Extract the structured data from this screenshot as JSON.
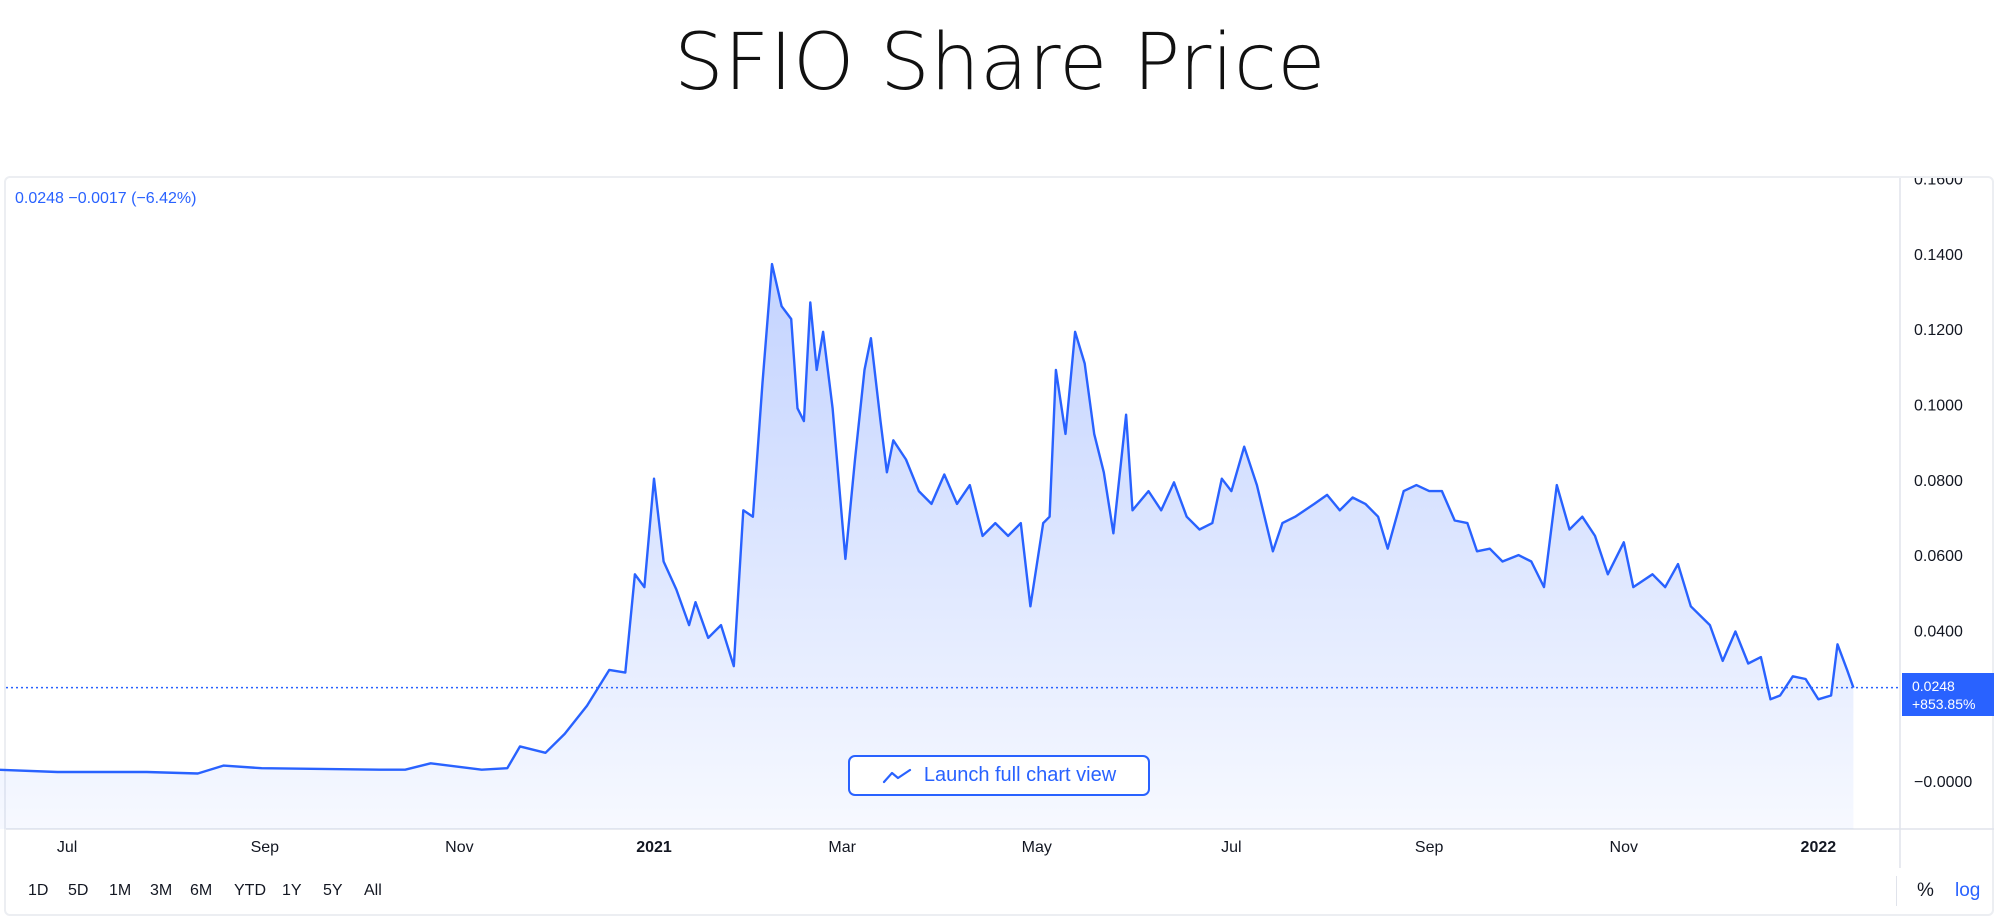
{
  "page": {
    "title": "SFIO Share Price"
  },
  "legend": {
    "text": "0.0248  −0.0017 (−6.42%)"
  },
  "price_tag": {
    "price": "0.0248",
    "change": "+853.85%"
  },
  "launch_button": {
    "label": "Launch full chart view",
    "icon": "chart-line-icon"
  },
  "range_buttons": [
    "1D",
    "5D",
    "1M",
    "3M",
    "6M",
    "YTD",
    "1Y",
    "5Y",
    "All"
  ],
  "axis_buttons": {
    "percent": "%",
    "log": "log"
  },
  "colors": {
    "line": "#2962ff",
    "accent": "#2962ff",
    "text": "#131722"
  },
  "chart_data": {
    "type": "area",
    "title": "SFIO Share Price",
    "xlabel": "",
    "ylabel": "",
    "ylim": [
      -0.0128,
      0.16
    ],
    "xlim": [
      "2020-06-09",
      "2022-01-25"
    ],
    "grid": false,
    "current_price_line": 0.0248,
    "y_ticks": [
      "0.1600",
      "0.1400",
      "0.1200",
      "0.1000",
      "0.0800",
      "0.0600",
      "0.0400",
      "−0.0000"
    ],
    "y_tick_values": [
      0.16,
      0.14,
      0.12,
      0.1,
      0.08,
      0.06,
      0.04,
      0
    ],
    "x_ticks": [
      {
        "label": "Jul",
        "date": "2020-07-01"
      },
      {
        "label": "Sep",
        "date": "2020-09-01"
      },
      {
        "label": "Nov",
        "date": "2020-11-01"
      },
      {
        "label": "2021",
        "date": "2021-01-01"
      },
      {
        "label": "Mar",
        "date": "2021-03-01"
      },
      {
        "label": "May",
        "date": "2021-05-01"
      },
      {
        "label": "Jul",
        "date": "2021-07-01"
      },
      {
        "label": "Sep",
        "date": "2021-09-01"
      },
      {
        "label": "Nov",
        "date": "2021-11-01"
      },
      {
        "label": "2022",
        "date": "2022-01-01"
      }
    ],
    "series": [
      {
        "points": [
          [
            "2020-06-09",
            0.003
          ],
          [
            "2020-06-28",
            0.0024
          ],
          [
            "2020-07-26",
            0.0024
          ],
          [
            "2020-08-11",
            0.002
          ],
          [
            "2020-08-19",
            0.0041
          ],
          [
            "2020-08-31",
            0.0034
          ],
          [
            "2020-10-07",
            0.003
          ],
          [
            "2020-10-15",
            0.003
          ],
          [
            "2020-10-23",
            0.0047
          ],
          [
            "2020-11-08",
            0.003
          ],
          [
            "2020-11-16",
            0.0034
          ],
          [
            "2020-11-20",
            0.0092
          ],
          [
            "2020-11-28",
            0.0075
          ],
          [
            "2020-12-04",
            0.0125
          ],
          [
            "2020-12-11",
            0.02
          ],
          [
            "2020-12-18",
            0.0295
          ],
          [
            "2020-12-23",
            0.0288
          ],
          [
            "2020-12-26",
            0.0549
          ],
          [
            "2020-12-29",
            0.0515
          ],
          [
            "2021-01-01",
            0.0803
          ],
          [
            "2021-01-04",
            0.0583
          ],
          [
            "2021-01-08",
            0.0509
          ],
          [
            "2021-01-12",
            0.0414
          ],
          [
            "2021-01-14",
            0.0475
          ],
          [
            "2021-01-18",
            0.038
          ],
          [
            "2021-01-22",
            0.0414
          ],
          [
            "2021-01-26",
            0.0305
          ],
          [
            "2021-01-29",
            0.0719
          ],
          [
            "2021-02-01",
            0.0702
          ],
          [
            "2021-02-04",
            0.1058
          ],
          [
            "2021-02-07",
            0.1373
          ],
          [
            "2021-02-10",
            0.1261
          ],
          [
            "2021-02-13",
            0.1227
          ],
          [
            "2021-02-15",
            0.099
          ],
          [
            "2021-02-17",
            0.0956
          ],
          [
            "2021-02-19",
            0.1271
          ],
          [
            "2021-02-21",
            0.1092
          ],
          [
            "2021-02-23",
            0.1193
          ],
          [
            "2021-02-26",
            0.099
          ],
          [
            "2021-03-02",
            0.059
          ],
          [
            "2021-03-05",
            0.0854
          ],
          [
            "2021-03-08",
            0.1092
          ],
          [
            "2021-03-10",
            0.1176
          ],
          [
            "2021-03-13",
            0.0956
          ],
          [
            "2021-03-15",
            0.082
          ],
          [
            "2021-03-17",
            0.0905
          ],
          [
            "2021-03-21",
            0.0854
          ],
          [
            "2021-03-25",
            0.077
          ],
          [
            "2021-03-29",
            0.0736
          ],
          [
            "2021-04-02",
            0.0814
          ],
          [
            "2021-04-06",
            0.0736
          ],
          [
            "2021-04-10",
            0.0786
          ],
          [
            "2021-04-14",
            0.0651
          ],
          [
            "2021-04-18",
            0.0685
          ],
          [
            "2021-04-22",
            0.0651
          ],
          [
            "2021-04-26",
            0.0685
          ],
          [
            "2021-04-29",
            0.0464
          ],
          [
            "2021-05-03",
            0.0685
          ],
          [
            "2021-05-05",
            0.0702
          ],
          [
            "2021-05-07",
            0.1092
          ],
          [
            "2021-05-10",
            0.0922
          ],
          [
            "2021-05-13",
            0.1193
          ],
          [
            "2021-05-16",
            0.1109
          ],
          [
            "2021-05-19",
            0.0922
          ],
          [
            "2021-05-22",
            0.082
          ],
          [
            "2021-05-25",
            0.0658
          ],
          [
            "2021-05-29",
            0.0973
          ],
          [
            "2021-05-31",
            0.0719
          ],
          [
            "2021-06-05",
            0.077
          ],
          [
            "2021-06-09",
            0.0719
          ],
          [
            "2021-06-13",
            0.0793
          ],
          [
            "2021-06-17",
            0.0702
          ],
          [
            "2021-06-21",
            0.0668
          ],
          [
            "2021-06-25",
            0.0685
          ],
          [
            "2021-06-28",
            0.0803
          ],
          [
            "2021-07-01",
            0.077
          ],
          [
            "2021-07-05",
            0.0888
          ],
          [
            "2021-07-09",
            0.0786
          ],
          [
            "2021-07-14",
            0.061
          ],
          [
            "2021-07-17",
            0.0685
          ],
          [
            "2021-07-21",
            0.0702
          ],
          [
            "2021-07-27",
            0.0736
          ],
          [
            "2021-07-31",
            0.076
          ],
          [
            "2021-08-04",
            0.0719
          ],
          [
            "2021-08-08",
            0.0753
          ],
          [
            "2021-08-12",
            0.0736
          ],
          [
            "2021-08-16",
            0.0702
          ],
          [
            "2021-08-19",
            0.0617
          ],
          [
            "2021-08-24",
            0.077
          ],
          [
            "2021-08-28",
            0.0786
          ],
          [
            "2021-09-01",
            0.077
          ],
          [
            "2021-09-05",
            0.077
          ],
          [
            "2021-09-09",
            0.0692
          ],
          [
            "2021-09-13",
            0.0685
          ],
          [
            "2021-09-16",
            0.061
          ],
          [
            "2021-09-20",
            0.0617
          ],
          [
            "2021-09-24",
            0.0583
          ],
          [
            "2021-09-29",
            0.06
          ],
          [
            "2021-10-03",
            0.0583
          ],
          [
            "2021-10-07",
            0.0515
          ],
          [
            "2021-10-11",
            0.0786
          ],
          [
            "2021-10-15",
            0.0668
          ],
          [
            "2021-10-19",
            0.0702
          ],
          [
            "2021-10-23",
            0.0651
          ],
          [
            "2021-10-27",
            0.0549
          ],
          [
            "2021-11-01",
            0.0634
          ],
          [
            "2021-11-04",
            0.0515
          ],
          [
            "2021-11-10",
            0.0549
          ],
          [
            "2021-11-14",
            0.0515
          ],
          [
            "2021-11-18",
            0.0576
          ],
          [
            "2021-11-22",
            0.0464
          ],
          [
            "2021-11-28",
            0.0414
          ],
          [
            "2021-12-02",
            0.0319
          ],
          [
            "2021-12-06",
            0.0397
          ],
          [
            "2021-12-10",
            0.0312
          ],
          [
            "2021-12-14",
            0.0329
          ],
          [
            "2021-12-17",
            0.0217
          ],
          [
            "2021-12-20",
            0.0227
          ],
          [
            "2021-12-24",
            0.0278
          ],
          [
            "2021-12-28",
            0.0271
          ],
          [
            "2022-01-01",
            0.0217
          ],
          [
            "2022-01-05",
            0.0227
          ],
          [
            "2022-01-07",
            0.0363
          ],
          [
            "2022-01-10",
            0.0295
          ],
          [
            "2022-01-12",
            0.0248
          ]
        ]
      }
    ]
  }
}
